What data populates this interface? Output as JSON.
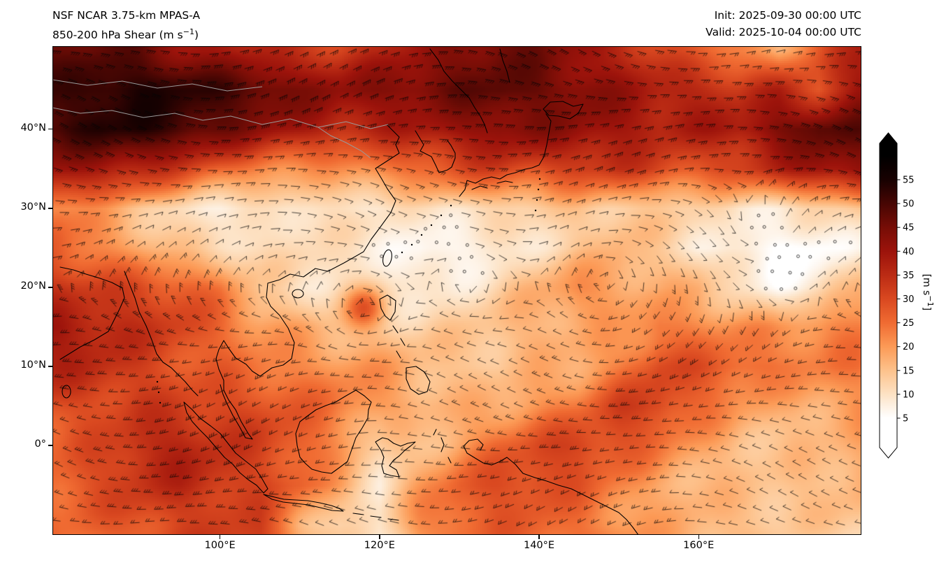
{
  "header": {
    "title_line1": "NSF NCAR 3.75-km MPAS-A",
    "title_line2_prefix": "850-200 hPa Shear (m s",
    "title_line2_sup": "−1",
    "title_line2_suffix": ")",
    "init_time": "Init: 2025-09-30 00:00 UTC",
    "valid_time": "Valid: 2025-10-04 00:00 UTC"
  },
  "axes": {
    "y_ticks": [
      {
        "label": "40°N",
        "lat": 40
      },
      {
        "label": "30°N",
        "lat": 30
      },
      {
        "label": "20°N",
        "lat": 20
      },
      {
        "label": "10°N",
        "lat": 10
      },
      {
        "label": "0°",
        "lat": 0
      }
    ],
    "x_ticks": [
      {
        "label": "100°E",
        "lon": 100
      },
      {
        "label": "120°E",
        "lon": 120
      },
      {
        "label": "140°E",
        "lon": 140
      },
      {
        "label": "160°E",
        "lon": 160
      }
    ]
  },
  "colorbar": {
    "ticks": [
      55,
      50,
      45,
      40,
      35,
      30,
      25,
      20,
      15,
      10,
      5
    ],
    "unit_prefix": "[m s",
    "unit_sup": "−1",
    "unit_suffix": "]"
  },
  "chart_data": {
    "type": "heatmap",
    "title": "NSF NCAR 3.75-km MPAS-A 850-200 hPa Shear",
    "variable": "850-200 hPa vertical wind shear with wind barbs",
    "units": "m s-1",
    "init": "2025-09-30 00:00 UTC",
    "valid": "2025-10-04 00:00 UTC",
    "extent": {
      "lon_min": 79.0,
      "lon_max": 180.4,
      "lat_min": -11.3,
      "lat_max": 50.5
    },
    "colorbar_range": [
      5,
      55
    ],
    "colormap": [
      [
        0,
        "#ffffff"
      ],
      [
        5,
        "#ffffff"
      ],
      [
        8,
        "#fdeedd"
      ],
      [
        10,
        "#fde2c4"
      ],
      [
        15,
        "#fdc28c"
      ],
      [
        20,
        "#fc9a56"
      ],
      [
        25,
        "#f06b32"
      ],
      [
        30,
        "#d94820"
      ],
      [
        35,
        "#bb2b14"
      ],
      [
        40,
        "#9c130b"
      ],
      [
        45,
        "#760d06"
      ],
      [
        50,
        "#470603"
      ],
      [
        55,
        "#180101"
      ],
      [
        60,
        "#000000"
      ]
    ],
    "grid": {
      "lons": [
        80,
        85,
        90,
        95,
        100,
        105,
        110,
        115,
        120,
        125,
        130,
        135,
        140,
        145,
        150,
        155,
        160,
        165,
        170,
        175,
        180
      ],
      "lats": [
        50,
        45,
        40,
        35,
        30,
        25,
        20,
        15,
        10,
        5,
        0,
        -5,
        -10
      ],
      "shear": [
        [
          45,
          46,
          46,
          42,
          40,
          38,
          34,
          32,
          34,
          38,
          42,
          46,
          46,
          42,
          38,
          32,
          26,
          22,
          16,
          26,
          36
        ],
        [
          50,
          55,
          56,
          55,
          52,
          48,
          42,
          40,
          42,
          45,
          48,
          50,
          48,
          45,
          40,
          36,
          34,
          32,
          36,
          30,
          42
        ],
        [
          52,
          55,
          54,
          50,
          45,
          40,
          38,
          36,
          38,
          40,
          42,
          44,
          42,
          40,
          38,
          36,
          38,
          40,
          46,
          50,
          48
        ],
        [
          40,
          38,
          35,
          30,
          26,
          24,
          22,
          22,
          24,
          26,
          28,
          30,
          28,
          32,
          34,
          32,
          30,
          32,
          36,
          40,
          40
        ],
        [
          22,
          18,
          15,
          12,
          10,
          10,
          12,
          10,
          8,
          8,
          10,
          12,
          14,
          16,
          16,
          14,
          12,
          8,
          8,
          10,
          14
        ],
        [
          28,
          24,
          20,
          15,
          12,
          10,
          10,
          8,
          8,
          6,
          8,
          10,
          12,
          14,
          16,
          12,
          8,
          6,
          5,
          6,
          10
        ],
        [
          35,
          32,
          30,
          26,
          22,
          12,
          10,
          12,
          12,
          10,
          10,
          12,
          16,
          20,
          18,
          16,
          18,
          12,
          8,
          10,
          18
        ],
        [
          38,
          35,
          32,
          30,
          26,
          22,
          20,
          16,
          14,
          12,
          12,
          14,
          16,
          18,
          20,
          26,
          24,
          22,
          20,
          20,
          22
        ],
        [
          35,
          34,
          32,
          30,
          28,
          25,
          22,
          20,
          18,
          15,
          14,
          15,
          18,
          20,
          24,
          30,
          28,
          25,
          22,
          22,
          24
        ],
        [
          30,
          32,
          34,
          32,
          30,
          28,
          25,
          22,
          20,
          18,
          18,
          20,
          22,
          24,
          30,
          30,
          24,
          20,
          18,
          20,
          22
        ],
        [
          28,
          30,
          34,
          35,
          32,
          30,
          28,
          22,
          14,
          16,
          20,
          25,
          28,
          30,
          28,
          24,
          20,
          18,
          16,
          16,
          18
        ],
        [
          25,
          28,
          32,
          35,
          34,
          32,
          28,
          20,
          10,
          18,
          25,
          28,
          30,
          28,
          24,
          20,
          18,
          15,
          14,
          14,
          16
        ],
        [
          24,
          26,
          30,
          32,
          33,
          32,
          18,
          10,
          8,
          20,
          26,
          28,
          28,
          26,
          22,
          18,
          16,
          14,
          13,
          13,
          15
        ]
      ]
    },
    "features": [
      {
        "name": "tropical-cyclone",
        "lon": 118,
        "lat": 17.5,
        "spin": 1,
        "strength": 2.2,
        "radius_px": 55
      },
      {
        "name": "cyclonic-eddy",
        "lon": 131,
        "lat": 20.5,
        "spin": 1,
        "strength": 1.4,
        "radius_px": 70
      },
      {
        "name": "cyclonic-eddy",
        "lon": 148.5,
        "lat": 21,
        "spin": 1,
        "strength": 1.4,
        "radius_px": 85
      },
      {
        "name": "anticyclonic-eddy",
        "lon": 167,
        "lat": 27,
        "spin": -1,
        "strength": 1.1,
        "radius_px": 90
      }
    ],
    "wind_barbs": true
  }
}
